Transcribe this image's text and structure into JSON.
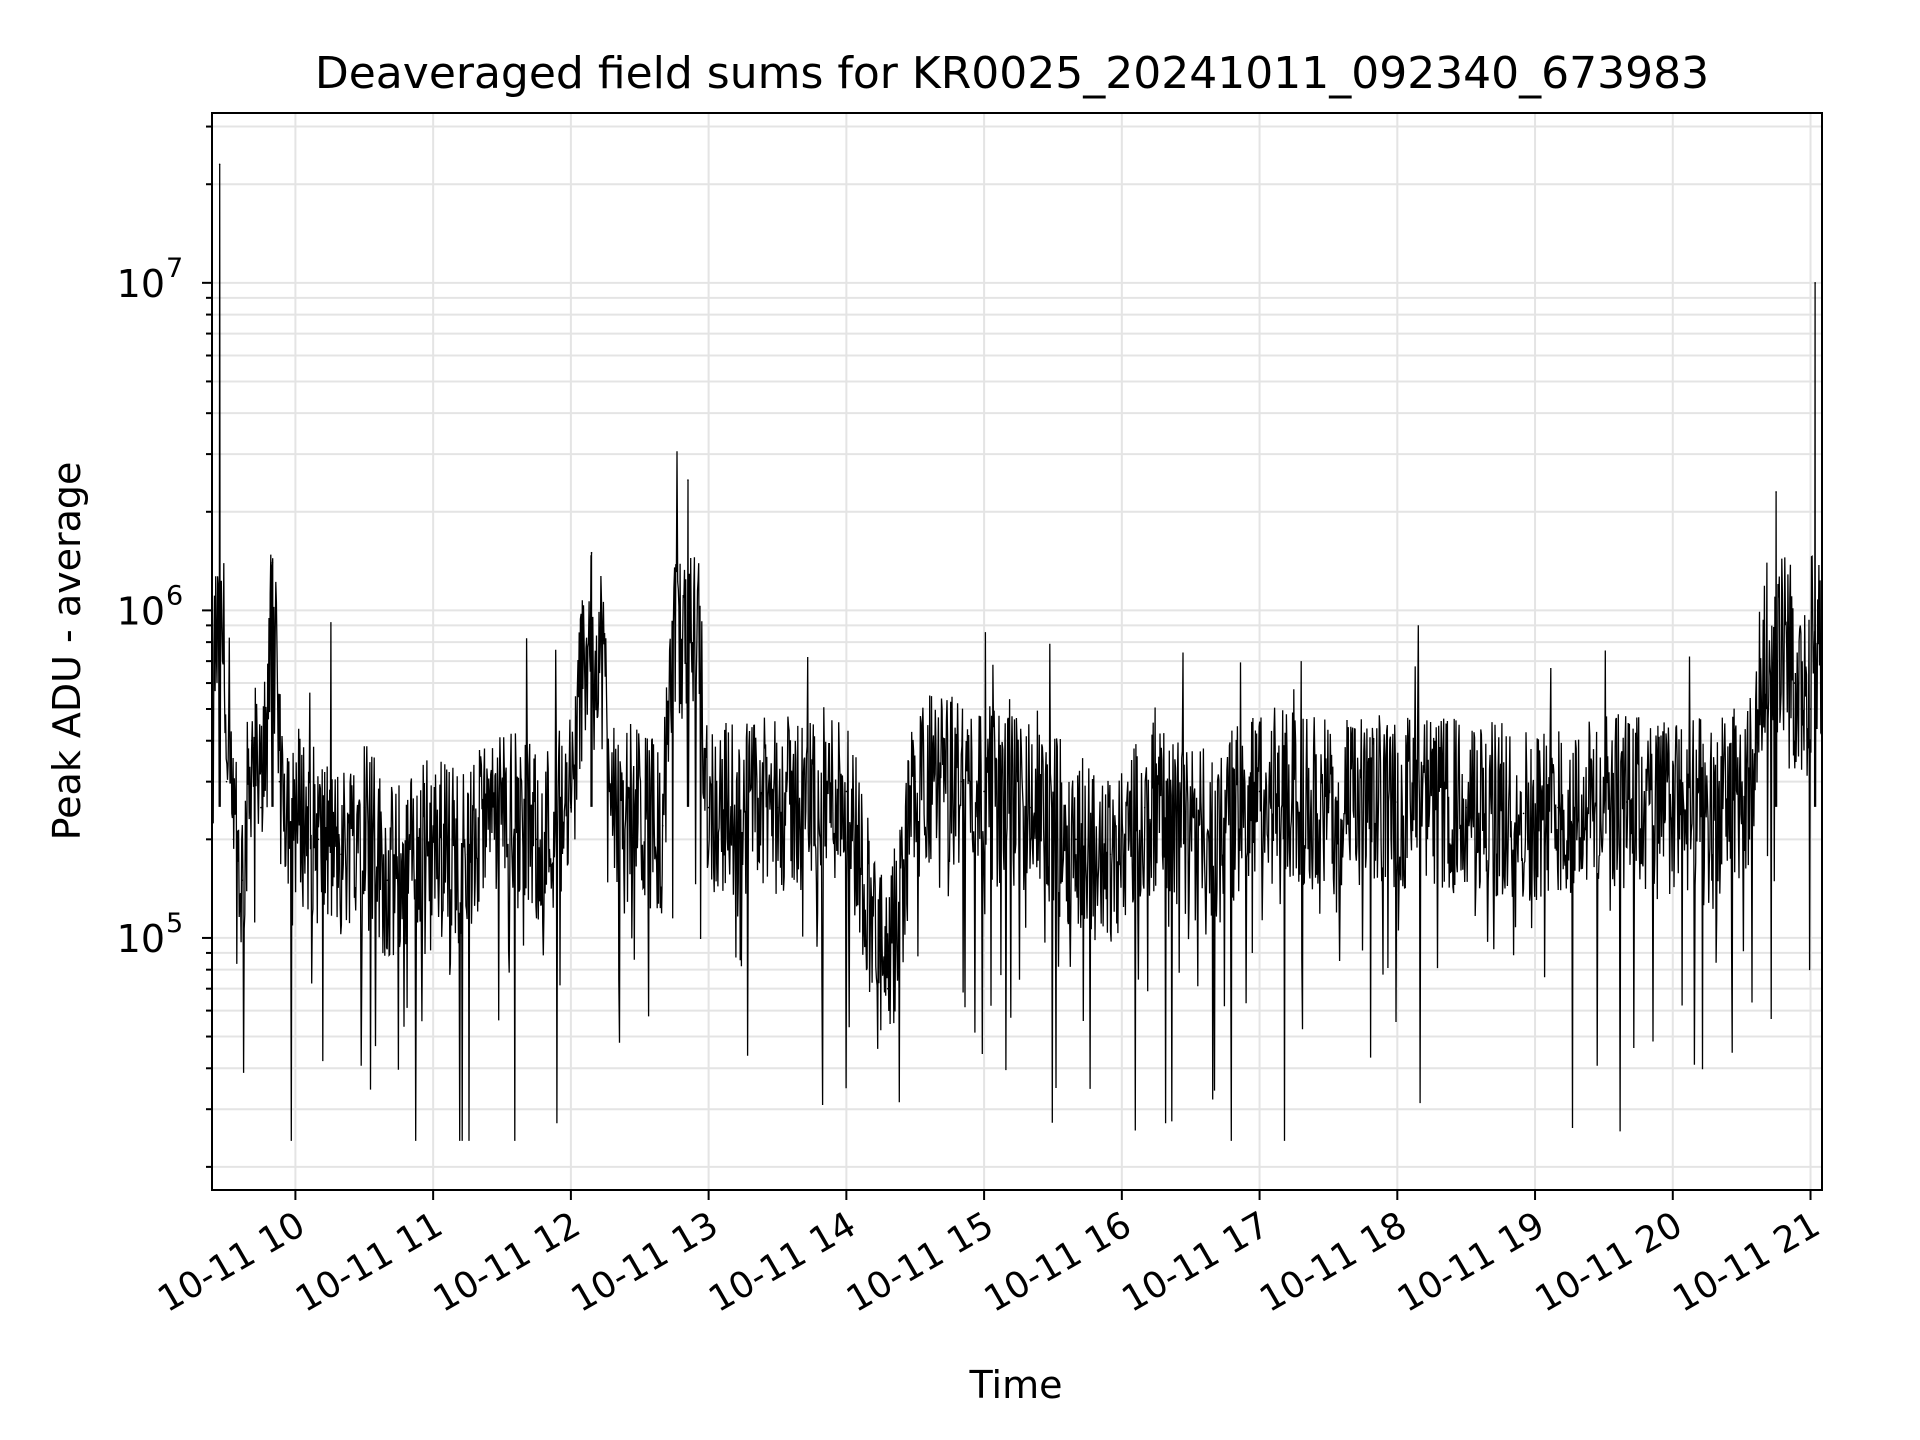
{
  "chart_data": {
    "type": "line",
    "title": "Deaveraged field sums for KR0025_20241011_092340_673983",
    "xlabel": "Time",
    "ylabel": "Peak ADU - average",
    "yscale": "log",
    "ylim": [
      17000,
      33000000
    ],
    "xlim": [
      "2024-10-11 09:23:40",
      "2024-10-11 21:05:00"
    ],
    "x_tick_labels": [
      "10-11 10",
      "10-11 11",
      "10-11 12",
      "10-11 13",
      "10-11 14",
      "10-11 15",
      "10-11 16",
      "10-11 17",
      "10-11 18",
      "10-11 19",
      "10-11 20",
      "10-11 21"
    ],
    "y_tick_labels": [
      {
        "base": "10",
        "exp": "5"
      },
      {
        "base": "10",
        "exp": "6"
      },
      {
        "base": "10",
        "exp": "7"
      }
    ],
    "grid": true,
    "line_color": "#000000",
    "grid_color": "#e4e4e4",
    "series": [
      {
        "x": [
          "2024-10-11 09:23:40",
          "2024-10-11 09:27:00",
          "2024-10-11 09:30:00",
          "2024-10-11 09:33:00",
          "2024-10-11 09:37:00",
          "2024-10-11 09:41:00",
          "2024-10-11 09:45:00",
          "2024-10-11 09:50:00",
          "2024-10-11 09:53:00",
          "2024-10-11 10:00:00",
          "2024-10-11 10:10:00",
          "2024-10-11 10:20:00",
          "2024-10-11 10:30:00",
          "2024-10-11 10:40:00",
          "2024-10-11 11:00:00",
          "2024-10-11 11:15:00",
          "2024-10-11 11:30:00",
          "2024-10-11 11:45:00",
          "2024-10-11 12:00:00",
          "2024-10-11 12:09:00",
          "2024-10-11 12:20:00",
          "2024-10-11 12:40:00",
          "2024-10-11 12:51:00",
          "2024-10-11 13:00:00",
          "2024-10-11 13:30:00",
          "2024-10-11 14:00:00",
          "2024-10-11 14:18:00",
          "2024-10-11 14:30:00",
          "2024-10-11 14:50:00",
          "2024-10-11 15:00:00",
          "2024-10-11 15:20:00",
          "2024-10-11 15:40:00",
          "2024-10-11 15:55:00",
          "2024-10-11 16:10:00",
          "2024-10-11 16:35:00",
          "2024-10-11 17:00:00",
          "2024-10-11 17:30:00",
          "2024-10-11 18:00:00",
          "2024-10-11 18:30:00",
          "2024-10-11 18:55:00",
          "2024-10-11 19:10:00",
          "2024-10-11 19:40:00",
          "2024-10-11 20:00:00",
          "2024-10-11 20:20:00",
          "2024-10-11 20:35:00",
          "2024-10-11 20:45:00",
          "2024-10-11 20:53:00",
          "2024-10-11 21:00:00",
          "2024-10-11 21:02:00",
          "2024-10-11 21:05:00"
        ],
        "y": [
          150000,
          23000000,
          300000,
          200000,
          150000,
          400000,
          250000,
          1400000,
          300000,
          250000,
          200000,
          180000,
          250000,
          150000,
          200000,
          180000,
          250000,
          200000,
          250000,
          1500000,
          250000,
          220000,
          2500000,
          250000,
          250000,
          280000,
          70000,
          300000,
          300000,
          280000,
          250000,
          200000,
          180000,
          250000,
          200000,
          280000,
          250000,
          260000,
          250000,
          240000,
          250000,
          260000,
          250000,
          250000,
          300000,
          2300000,
          600000,
          500000,
          10000000,
          600000
        ]
      }
    ]
  }
}
